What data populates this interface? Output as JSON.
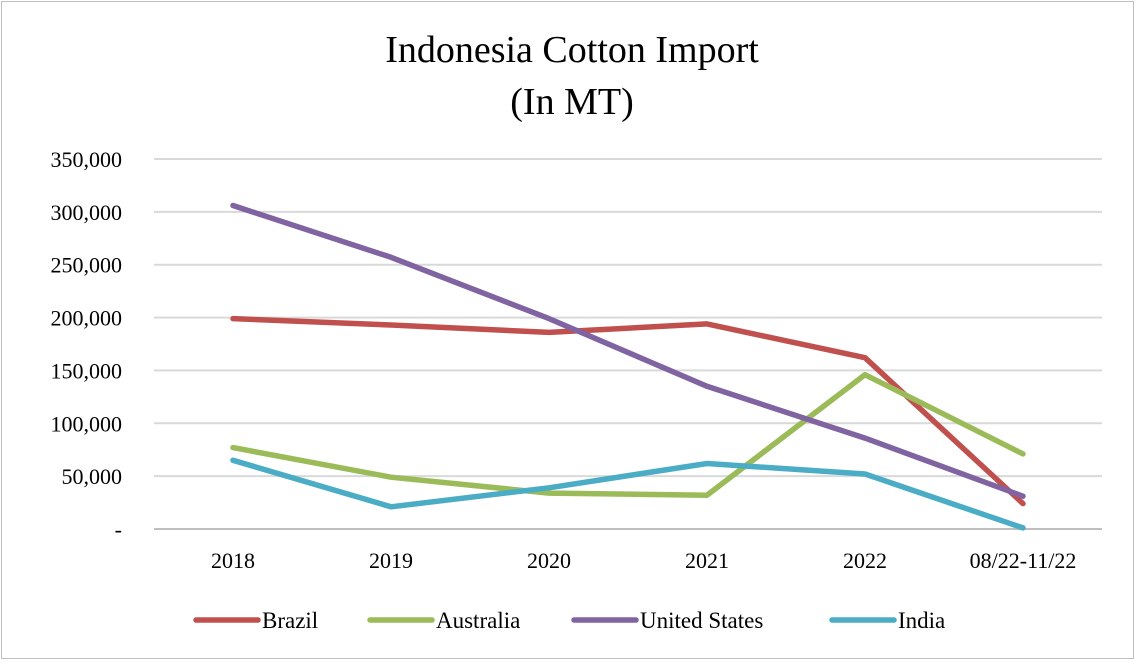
{
  "chart_data": {
    "type": "line",
    "title": "Indonesia Cotton Import",
    "subtitle": "(In MT)",
    "categories": [
      "2018",
      "2019",
      "2020",
      "2021",
      "2022",
      "08/22-11/22"
    ],
    "ylim": [
      0,
      350000
    ],
    "yticks": [
      {
        "value": 0,
        "label": "-"
      },
      {
        "value": 50000,
        "label": "50,000"
      },
      {
        "value": 100000,
        "label": "100,000"
      },
      {
        "value": 150000,
        "label": "150,000"
      },
      {
        "value": 200000,
        "label": "200,000"
      },
      {
        "value": 250000,
        "label": "250,000"
      },
      {
        "value": 300000,
        "label": "300,000"
      },
      {
        "value": 350000,
        "label": "350,000"
      }
    ],
    "grid": true,
    "legend_position": "bottom",
    "series": [
      {
        "name": "Brazil",
        "color": "#c0504d",
        "values": [
          199000,
          193000,
          186000,
          194000,
          162000,
          24000
        ]
      },
      {
        "name": "Australia",
        "color": "#9bbb59",
        "values": [
          77000,
          49000,
          34000,
          32000,
          146000,
          71000
        ]
      },
      {
        "name": "United States",
        "color": "#8064a2",
        "values": [
          306000,
          257000,
          199000,
          135000,
          86000,
          31000
        ]
      },
      {
        "name": "India",
        "color": "#4bacc6",
        "values": [
          65000,
          21000,
          39000,
          62000,
          52000,
          1000
        ]
      }
    ]
  }
}
